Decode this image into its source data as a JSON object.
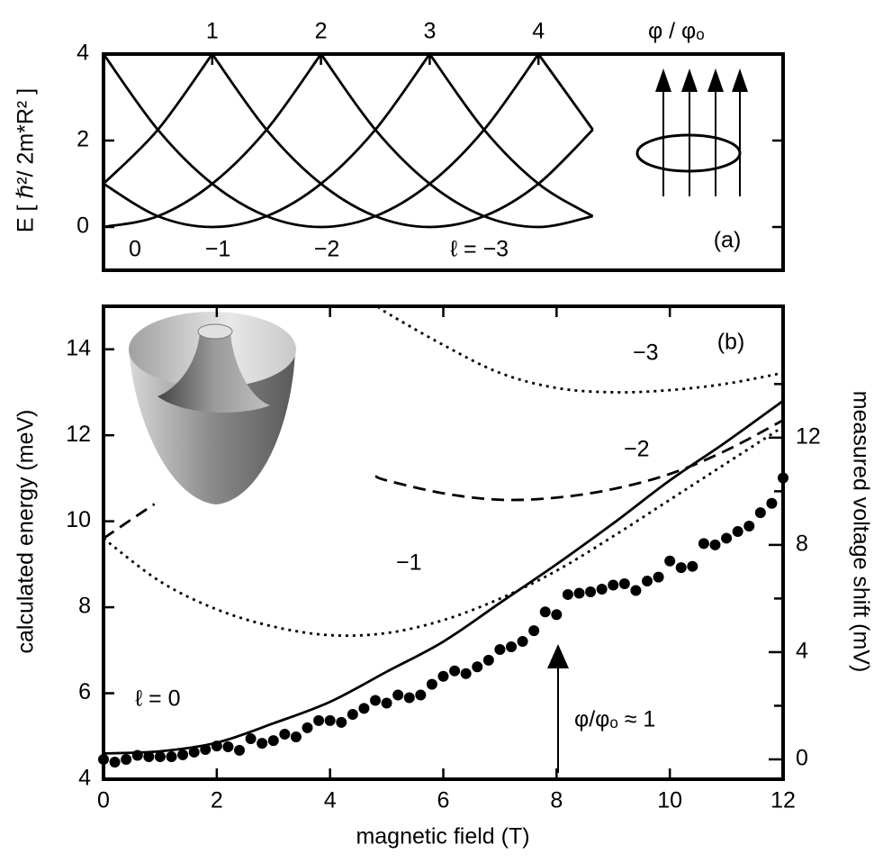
{
  "chart_data": [
    {
      "type": "line",
      "y_label": "E  [ ℏ²/ 2m*R² ]",
      "x_label": "φ / φₒ",
      "xlim": [
        0,
        6.25
      ],
      "xticks": [
        1,
        2,
        3,
        4
      ],
      "ylim": [
        -1,
        4
      ],
      "yticks": [
        0,
        2,
        4
      ],
      "x": [
        0,
        0.5,
        1,
        1.5,
        2,
        2.5,
        3,
        3.5,
        4,
        4.5
      ],
      "series": [
        {
          "style": "solid",
          "color": "#000000",
          "values": [
            1,
            2.25,
            4,
            null,
            null,
            null,
            null,
            null,
            null,
            null
          ]
        },
        {
          "style": "solid",
          "color": "#000000",
          "values": [
            0,
            0.25,
            1,
            2.25,
            4,
            null,
            null,
            null,
            null,
            null
          ]
        },
        {
          "style": "solid",
          "color": "#000000",
          "values": [
            1,
            0.25,
            0,
            0.25,
            1,
            2.25,
            4,
            null,
            null,
            null
          ]
        },
        {
          "style": "solid",
          "color": "#000000",
          "values": [
            4,
            2.25,
            1,
            0.25,
            0,
            0.25,
            1,
            2.25,
            4,
            null
          ]
        },
        {
          "style": "solid",
          "color": "#000000",
          "values": [
            null,
            null,
            4,
            2.25,
            1,
            0.25,
            0,
            0.25,
            1,
            2.25
          ]
        },
        {
          "style": "solid",
          "color": "#000000",
          "values": [
            null,
            null,
            null,
            null,
            4,
            2.25,
            1,
            0.25,
            0,
            0.25
          ]
        },
        {
          "style": "solid",
          "color": "#000000",
          "values": [
            null,
            null,
            null,
            null,
            null,
            null,
            4,
            2.25,
            1,
            0.25
          ]
        },
        {
          "style": "solid",
          "color": "#000000",
          "values": [
            null,
            null,
            null,
            null,
            null,
            null,
            null,
            null,
            4,
            2.25
          ]
        }
      ],
      "annotations": [
        {
          "text": "0"
        },
        {
          "text": "−1"
        },
        {
          "text": "−2"
        },
        {
          "text": "ℓ = −3"
        },
        {
          "text": "(a)"
        }
      ]
    },
    {
      "type": "line",
      "x_label": "magnetic field  (T)",
      "y_label": "calculated energy  (meV)",
      "y2_label": "measured voltage shift  (mV)",
      "xlim": [
        0,
        12
      ],
      "xticks": [
        0,
        2,
        4,
        6,
        8,
        10,
        12
      ],
      "ylim": [
        4,
        15
      ],
      "yticks": [
        4,
        6,
        8,
        10,
        12,
        14
      ],
      "y2lim": [
        -0.74,
        16.9
      ],
      "y2ticks": [
        0,
        4,
        8,
        12
      ],
      "y2minor": [
        2,
        6,
        10,
        14
      ],
      "series": [
        {
          "style": "solid",
          "color": "#000000",
          "x": [
            0,
            1,
            2,
            3,
            4,
            5,
            6,
            7,
            8,
            9,
            10,
            11,
            12
          ],
          "values": [
            4.6,
            4.65,
            4.85,
            5.3,
            5.8,
            6.5,
            7.2,
            8.1,
            9.0,
            9.95,
            10.95,
            11.85,
            12.8
          ]
        },
        {
          "style": "dotted",
          "color": "#000000",
          "x": [
            0,
            1,
            2,
            3,
            4,
            5,
            6,
            7,
            8,
            9,
            10,
            11,
            12
          ],
          "values": [
            9.6,
            8.6,
            7.95,
            7.55,
            7.35,
            7.4,
            7.7,
            8.2,
            8.85,
            9.65,
            10.5,
            11.35,
            12.2
          ]
        },
        {
          "style": "dashed",
          "color": "#000000",
          "x": [
            0,
            0.5,
            0.9
          ],
          "values": [
            9.6,
            10.05,
            10.4
          ]
        },
        {
          "style": "dashed",
          "color": "#000000",
          "x": [
            4.8,
            5,
            6,
            7,
            8,
            9,
            10,
            11,
            12
          ],
          "values": [
            11.05,
            10.95,
            10.65,
            10.5,
            10.55,
            10.75,
            11.1,
            11.65,
            12.35
          ]
        },
        {
          "style": "dotted",
          "color": "#000000",
          "x": [
            4.85,
            5,
            6,
            7,
            8,
            9,
            10,
            11,
            12
          ],
          "values": [
            15,
            14.85,
            14.1,
            13.45,
            13.1,
            13.0,
            13.05,
            13.2,
            13.45
          ]
        },
        {
          "style": "dots",
          "color": "#000000",
          "axis": "y2",
          "x": [
            0,
            0.2,
            0.4,
            0.6,
            0.8,
            1,
            1.2,
            1.4,
            1.6,
            1.8,
            2,
            2.2,
            2.4,
            2.6,
            2.8,
            3,
            3.2,
            3.4,
            3.6,
            3.8,
            4,
            4.2,
            4.4,
            4.6,
            4.8,
            5,
            5.2,
            5.4,
            5.6,
            5.8,
            6,
            6.2,
            6.4,
            6.6,
            6.8,
            7,
            7.2,
            7.4,
            7.6,
            7.8,
            8,
            8.2,
            8.4,
            8.6,
            8.8,
            9,
            9.2,
            9.4,
            9.6,
            9.8,
            10,
            10.2,
            10.4,
            10.6,
            10.8,
            11,
            11.2,
            11.4,
            11.6,
            11.8,
            12
          ],
          "values": [
            0,
            -0.1,
            0,
            0.15,
            0.1,
            0.1,
            0.1,
            0.17,
            0.27,
            0.37,
            0.5,
            0.47,
            0.34,
            0.77,
            0.6,
            0.7,
            0.94,
            0.84,
            1.18,
            1.45,
            1.45,
            1.38,
            1.68,
            1.9,
            2.2,
            2.1,
            2.4,
            2.3,
            2.4,
            2.8,
            3.1,
            3.3,
            3.2,
            3.45,
            3.7,
            4.1,
            4.2,
            4.4,
            4.8,
            5.5,
            5.4,
            6.15,
            6.2,
            6.25,
            6.35,
            6.5,
            6.55,
            6.3,
            6.65,
            6.8,
            7.4,
            7.15,
            7.2,
            8.05,
            8.0,
            8.25,
            8.5,
            8.7,
            9.2,
            9.55,
            10.5
          ]
        }
      ],
      "annotations": [
        {
          "text": "ℓ = 0"
        },
        {
          "text": "−1"
        },
        {
          "text": "−2"
        },
        {
          "text": "−3"
        },
        {
          "text": "(b)"
        },
        {
          "text": "φ/φₒ ≈ 1"
        }
      ]
    }
  ]
}
